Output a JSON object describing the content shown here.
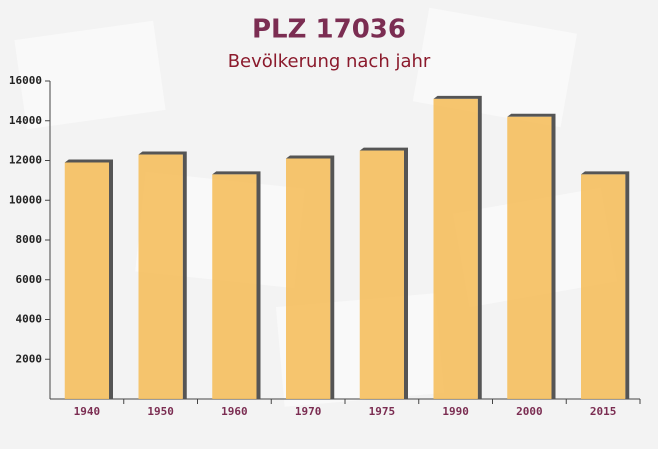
{
  "chart_data": {
    "type": "bar",
    "title": "PLZ 17036",
    "subtitle": "Bevölkerung nach jahr",
    "categories": [
      "1940",
      "1950",
      "1960",
      "1970",
      "1975",
      "1990",
      "2000",
      "2015"
    ],
    "values": [
      11900,
      12300,
      11300,
      12100,
      12500,
      15100,
      14200,
      11300
    ],
    "color": "#f5bf5e",
    "ylim": [
      0,
      16000
    ],
    "yticks": [
      2000,
      4000,
      6000,
      8000,
      10000,
      12000,
      14000,
      16000
    ],
    "grid": false
  }
}
